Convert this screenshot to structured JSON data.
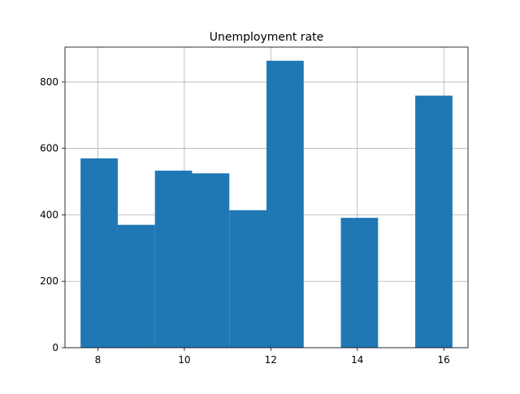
{
  "chart_data": {
    "type": "bar",
    "title": "Unemployment rate",
    "xlabel": "",
    "ylabel": "",
    "xlim": [
      7.24,
      16.56
    ],
    "ylim": [
      0,
      905
    ],
    "x_ticks": [
      8,
      10,
      12,
      14,
      16
    ],
    "y_ticks": [
      0,
      200,
      400,
      600,
      800
    ],
    "grid": true,
    "bin_edges": [
      7.6,
      8.46,
      9.32,
      10.18,
      11.04,
      11.9,
      12.76,
      13.62,
      14.48,
      15.34,
      16.2
    ],
    "values": [
      570,
      370,
      533,
      525,
      414,
      864,
      0,
      391,
      0,
      759
    ],
    "bar_color": "#1f77b4",
    "grid_color": "#b0b0b0"
  }
}
